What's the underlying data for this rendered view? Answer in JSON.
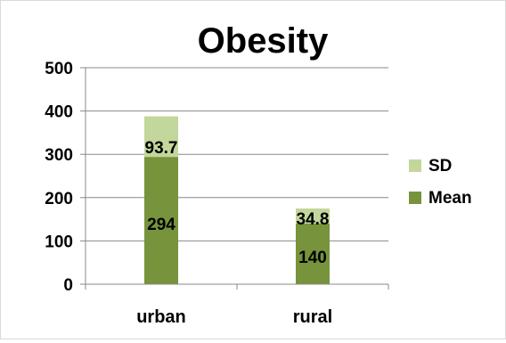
{
  "chart_data": {
    "type": "bar",
    "title": "Obesity",
    "xlabel": "",
    "ylabel": "",
    "categories": [
      "urban",
      "rural"
    ],
    "series": [
      {
        "name": "Mean",
        "values": [
          294,
          140
        ],
        "color": "#77933c"
      },
      {
        "name": "SD",
        "values": [
          93.7,
          34.8
        ],
        "color": "#c3d69b"
      }
    ],
    "stacked": true,
    "ylim": [
      0,
      500
    ],
    "yticks": [
      "0",
      "100",
      "200",
      "300",
      "400",
      "500"
    ],
    "grid": true,
    "legend_position": "right",
    "legend_order": [
      "SD",
      "Mean"
    ]
  }
}
